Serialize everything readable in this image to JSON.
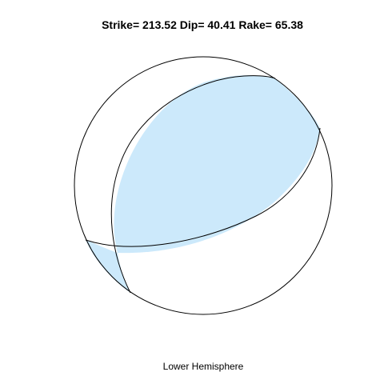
{
  "title": {
    "strike_label": "Strike=",
    "strike": "213.52",
    "dip_label": "Dip=",
    "dip": "40.41",
    "rake_label": "Rake=",
    "rake": "65.38"
  },
  "focal_mechanism": {
    "strike": 213.52,
    "dip": 40.41,
    "rake": 65.38,
    "projection": "lower hemisphere",
    "compressional_color": "#cce9fb",
    "dilatational_color": "#ffffff",
    "outline_color": "#000000"
  },
  "caption": "Lower Hemisphere"
}
